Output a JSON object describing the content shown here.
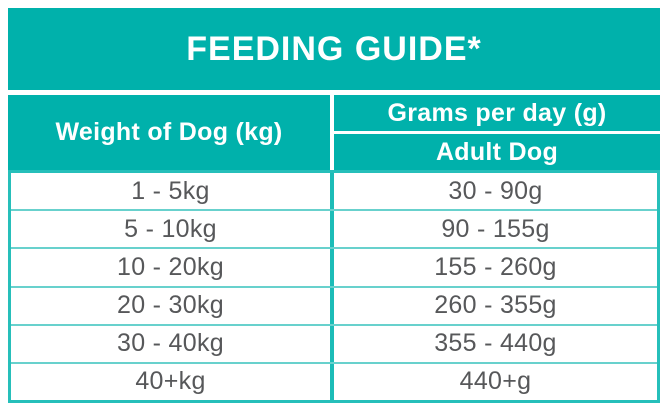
{
  "title": "FEEDING GUIDE*",
  "header": {
    "weight_col": "Weight of Dog (kg)",
    "grams_col": "Grams per day (g)",
    "grams_subcol": "Adult Dog"
  },
  "rows": [
    {
      "weight": "1 - 5kg",
      "grams": "30 - 90g"
    },
    {
      "weight": "5 - 10kg",
      "grams": "90 - 155g"
    },
    {
      "weight": "10 - 20kg",
      "grams": "155 - 260g"
    },
    {
      "weight": "20 - 30kg",
      "grams": "260 - 355g"
    },
    {
      "weight": "30 - 40kg",
      "grams": "355 - 440g"
    },
    {
      "weight": "40+kg",
      "grams": "440+g"
    }
  ],
  "chart_data": {
    "type": "table",
    "title": "FEEDING GUIDE*",
    "columns": [
      "Weight of Dog (kg)",
      "Grams per day (g) - Adult Dog"
    ],
    "rows": [
      [
        "1 - 5kg",
        "30 - 90g"
      ],
      [
        "5 - 10kg",
        "90 - 155g"
      ],
      [
        "10 - 20kg",
        "155 - 260g"
      ],
      [
        "20 - 30kg",
        "260 - 355g"
      ],
      [
        "30 - 40kg",
        "355 - 440g"
      ],
      [
        "40+kg",
        "440+g"
      ]
    ]
  },
  "colors": {
    "teal": "#00b1ab",
    "body_border_teal": "#26bfba",
    "row_separator_teal": "#68d1cd",
    "text_gray": "#57585a",
    "white": "#ffffff"
  }
}
